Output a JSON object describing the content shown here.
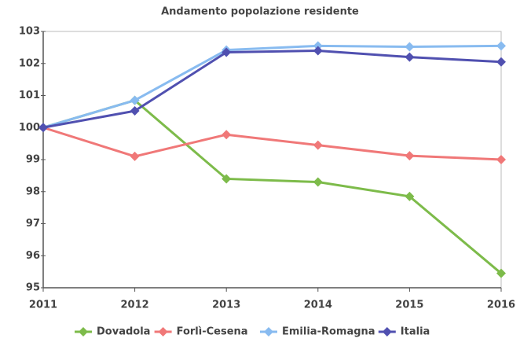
{
  "chart_data": {
    "type": "line",
    "title": "Andamento popolazione residente",
    "categories": [
      "2011",
      "2012",
      "2013",
      "2014",
      "2015",
      "2016"
    ],
    "series": [
      {
        "name": "Dovadola",
        "color": "#7dbb4a",
        "values": [
          100,
          100.85,
          98.4,
          98.3,
          97.85,
          95.45
        ]
      },
      {
        "name": "Forlì-Cesena",
        "color": "#f07878",
        "values": [
          100,
          99.1,
          99.78,
          99.45,
          99.12,
          99.0
        ]
      },
      {
        "name": "Emilia-Romagna",
        "color": "#88bbf0",
        "values": [
          100,
          100.85,
          102.42,
          102.55,
          102.52,
          102.55
        ]
      },
      {
        "name": "Italia",
        "color": "#5050b0",
        "values": [
          100,
          100.52,
          102.35,
          102.4,
          102.2,
          102.05
        ]
      }
    ],
    "ylim": [
      95,
      103
    ],
    "yticks": [
      95,
      96,
      97,
      98,
      99,
      100,
      101,
      102,
      103
    ],
    "grid": false,
    "legend": "bottom"
  }
}
